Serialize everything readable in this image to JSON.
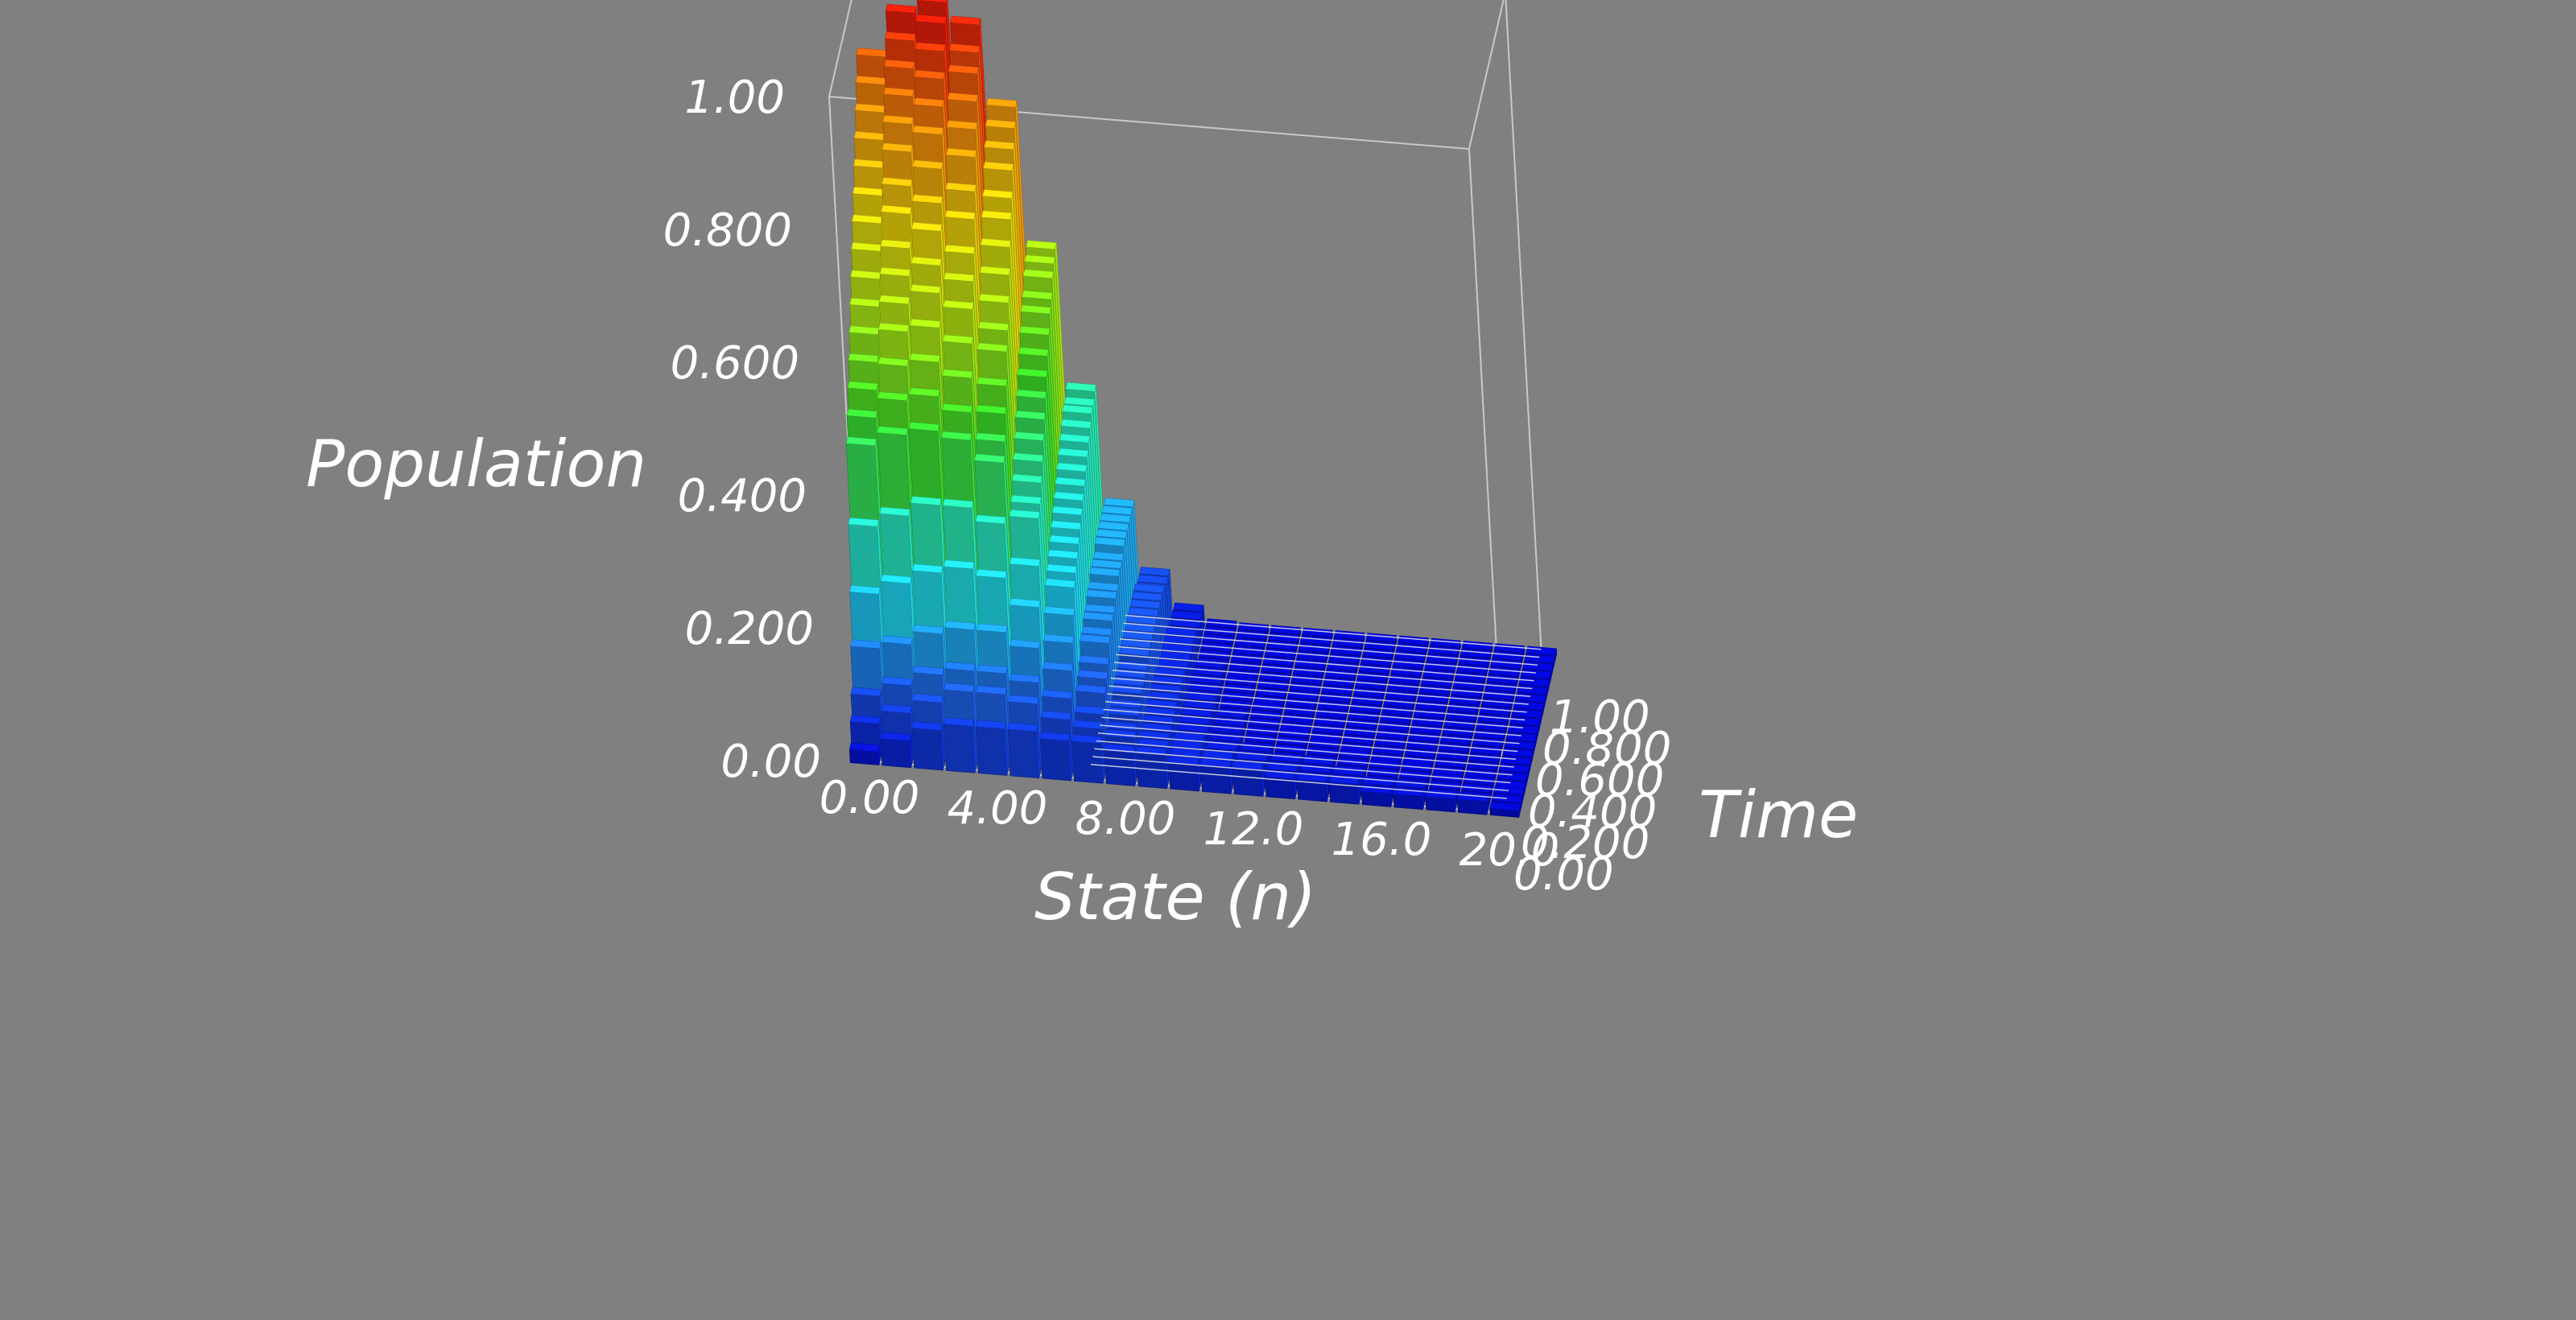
{
  "chart_data": {
    "type": "bar3d",
    "title": "",
    "xlabel": "State (n)",
    "ylabel": "Time",
    "zlabel": "Population",
    "xlim": [
      0,
      20
    ],
    "ylim": [
      0,
      1
    ],
    "zlim": [
      0,
      1
    ],
    "x_ticks": [
      "0.00",
      "4.00",
      "8.00",
      "12.0",
      "16.0",
      "20.0"
    ],
    "y_ticks": [
      "0.00",
      "0.200",
      "0.400",
      "0.600",
      "0.800",
      "1.00"
    ],
    "z_ticks": [
      "0.00",
      "0.200",
      "0.400",
      "0.600",
      "0.800",
      "1.00"
    ],
    "colormap": [
      "#0000c8",
      "#1e64e6",
      "#1ed2f0",
      "#28e6b4",
      "#3cdc28",
      "#aae614",
      "#e6d20a",
      "#f08c0a",
      "#e61e0a"
    ],
    "states": [
      0,
      1,
      2,
      3,
      4,
      5,
      6,
      7,
      8,
      9,
      10,
      11,
      12,
      13,
      14,
      15,
      16,
      17,
      18,
      19,
      20
    ],
    "times": [
      0.0,
      0.05,
      0.1,
      0.15,
      0.2,
      0.25,
      0.3,
      0.35,
      0.4,
      0.45,
      0.5,
      0.55,
      0.6,
      0.65,
      0.7,
      0.75,
      0.8,
      0.85,
      0.9,
      0.95,
      1.0
    ],
    "series": [
      {
        "values": [
          0.02,
          0.04,
          0.06,
          0.07,
          0.07,
          0.07,
          0.06,
          0.06,
          0.05,
          0.05,
          0.04,
          0.04,
          0.04,
          0.03,
          0.03,
          0.03,
          0.02,
          0.02,
          0.02,
          0.02,
          0.01
        ]
      },
      {
        "values": [
          0.05,
          0.07,
          0.09,
          0.11,
          0.11,
          0.1,
          0.08,
          0.07,
          0.06,
          0.05,
          0.04,
          0.04,
          0.03,
          0.03,
          0.02,
          0.02,
          0.02,
          0.02,
          0.01,
          0.01,
          0.01
        ]
      },
      {
        "values": [
          0.08,
          0.1,
          0.12,
          0.13,
          0.13,
          0.12,
          0.1,
          0.08,
          0.06,
          0.05,
          0.04,
          0.03,
          0.03,
          0.02,
          0.02,
          0.02,
          0.01,
          0.01,
          0.01,
          0.01,
          0.01
        ]
      },
      {
        "values": [
          0.14,
          0.15,
          0.17,
          0.18,
          0.18,
          0.16,
          0.13,
          0.1,
          0.07,
          0.05,
          0.04,
          0.03,
          0.02,
          0.02,
          0.02,
          0.01,
          0.01,
          0.01,
          0.01,
          0.01,
          0.0
        ]
      },
      {
        "values": [
          0.21,
          0.23,
          0.25,
          0.26,
          0.25,
          0.21,
          0.16,
          0.11,
          0.07,
          0.05,
          0.03,
          0.02,
          0.02,
          0.01,
          0.01,
          0.01,
          0.01,
          0.01,
          0.0,
          0.0,
          0.0
        ]
      },
      {
        "values": [
          0.3,
          0.32,
          0.34,
          0.34,
          0.32,
          0.26,
          0.19,
          0.12,
          0.08,
          0.05,
          0.03,
          0.02,
          0.01,
          0.01,
          0.01,
          0.01,
          0.0,
          0.0,
          0.0,
          0.0,
          0.0
        ]
      },
      {
        "values": [
          0.41,
          0.43,
          0.44,
          0.43,
          0.4,
          0.32,
          0.22,
          0.14,
          0.08,
          0.05,
          0.03,
          0.02,
          0.01,
          0.01,
          0.01,
          0.0,
          0.0,
          0.0,
          0.0,
          0.0,
          0.0
        ]
      },
      {
        "values": [
          0.44,
          0.47,
          0.48,
          0.46,
          0.42,
          0.33,
          0.23,
          0.14,
          0.08,
          0.05,
          0.03,
          0.02,
          0.01,
          0.01,
          0.0,
          0.0,
          0.0,
          0.0,
          0.0,
          0.0,
          0.0
        ]
      },
      {
        "values": [
          0.47,
          0.51,
          0.52,
          0.5,
          0.45,
          0.35,
          0.24,
          0.15,
          0.08,
          0.05,
          0.03,
          0.02,
          0.01,
          0.0,
          0.0,
          0.0,
          0.0,
          0.0,
          0.0,
          0.0,
          0.0
        ]
      },
      {
        "values": [
          0.5,
          0.55,
          0.56,
          0.54,
          0.48,
          0.37,
          0.25,
          0.15,
          0.09,
          0.05,
          0.03,
          0.01,
          0.01,
          0.0,
          0.0,
          0.0,
          0.0,
          0.0,
          0.0,
          0.0,
          0.0
        ]
      },
      {
        "values": [
          0.53,
          0.58,
          0.6,
          0.58,
          0.52,
          0.39,
          0.26,
          0.16,
          0.09,
          0.05,
          0.02,
          0.01,
          0.01,
          0.0,
          0.0,
          0.0,
          0.0,
          0.0,
          0.0,
          0.0,
          0.0
        ]
      },
      {
        "values": [
          0.56,
          0.61,
          0.63,
          0.61,
          0.54,
          0.41,
          0.27,
          0.16,
          0.09,
          0.04,
          0.02,
          0.01,
          0.0,
          0.0,
          0.0,
          0.0,
          0.0,
          0.0,
          0.0,
          0.0,
          0.0
        ]
      },
      {
        "values": [
          0.59,
          0.64,
          0.67,
          0.64,
          0.57,
          0.43,
          0.28,
          0.17,
          0.09,
          0.04,
          0.02,
          0.01,
          0.0,
          0.0,
          0.0,
          0.0,
          0.0,
          0.0,
          0.0,
          0.0,
          0.0
        ]
      },
      {
        "values": [
          0.62,
          0.68,
          0.7,
          0.68,
          0.6,
          0.45,
          0.29,
          0.17,
          0.09,
          0.04,
          0.02,
          0.01,
          0.0,
          0.0,
          0.0,
          0.0,
          0.0,
          0.0,
          0.0,
          0.0,
          0.0
        ]
      },
      {
        "values": [
          0.65,
          0.71,
          0.74,
          0.71,
          0.63,
          0.47,
          0.3,
          0.17,
          0.09,
          0.04,
          0.02,
          0.0,
          0.0,
          0.0,
          0.0,
          0.0,
          0.0,
          0.0,
          0.0,
          0.0,
          0.0
        ]
      },
      {
        "values": [
          0.68,
          0.75,
          0.78,
          0.75,
          0.66,
          0.49,
          0.31,
          0.18,
          0.09,
          0.04,
          0.01,
          0.0,
          0.0,
          0.0,
          0.0,
          0.0,
          0.0,
          0.0,
          0.0,
          0.0,
          0.0
        ]
      },
      {
        "values": [
          0.71,
          0.78,
          0.81,
          0.78,
          0.68,
          0.51,
          0.32,
          0.18,
          0.09,
          0.04,
          0.01,
          0.0,
          0.0,
          0.0,
          0.0,
          0.0,
          0.0,
          0.0,
          0.0,
          0.0,
          0.0
        ]
      },
      {
        "values": [
          0.74,
          0.81,
          0.84,
          0.81,
          0.71,
          0.52,
          0.33,
          0.18,
          0.09,
          0.03,
          0.01,
          0.0,
          0.0,
          0.0,
          0.0,
          0.0,
          0.0,
          0.0,
          0.0,
          0.0,
          0.0
        ]
      },
      {
        "values": [
          0.77,
          0.84,
          0.87,
          0.84,
          0.73,
          0.54,
          0.34,
          0.18,
          0.08,
          0.03,
          0.01,
          0.0,
          0.0,
          0.0,
          0.0,
          0.0,
          0.0,
          0.0,
          0.0,
          0.0,
          0.0
        ]
      },
      {
        "values": [
          0.8,
          0.87,
          0.9,
          0.86,
          0.75,
          0.55,
          0.34,
          0.18,
          0.08,
          0.03,
          0.01,
          0.0,
          0.0,
          0.0,
          0.0,
          0.0,
          0.0,
          0.0,
          0.0,
          0.0,
          0.0
        ]
      },
      {
        "values": [
          0.83,
          0.9,
          0.92,
          0.89,
          0.77,
          0.56,
          0.35,
          0.18,
          0.08,
          0.03,
          0.01,
          0.0,
          0.0,
          0.0,
          0.0,
          0.0,
          0.0,
          0.0,
          0.0,
          0.0,
          0.0
        ]
      }
    ]
  }
}
